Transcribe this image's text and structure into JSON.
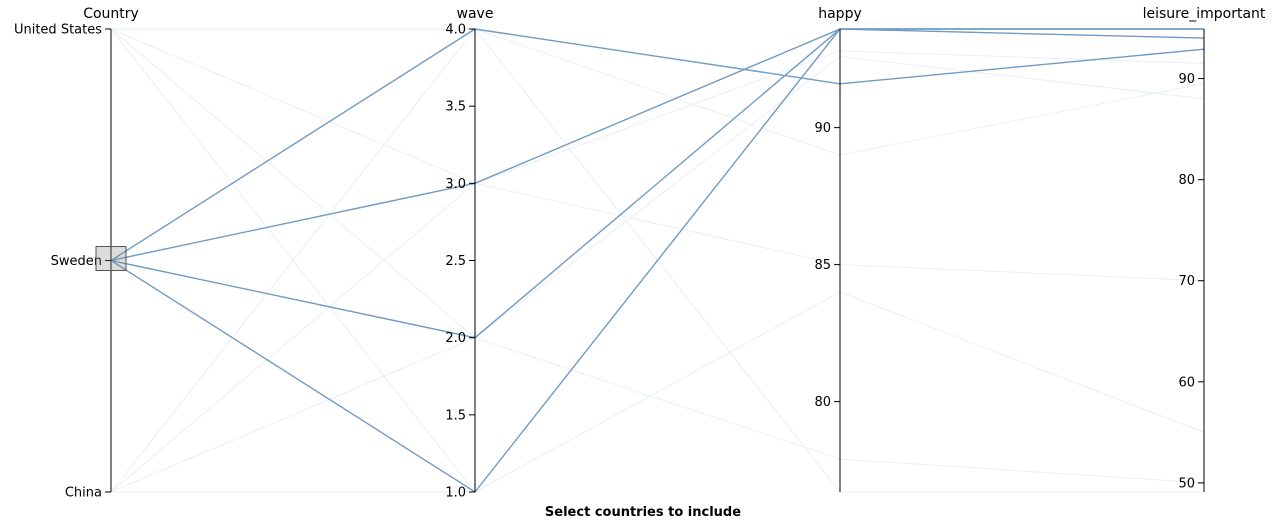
{
  "chart_data": {
    "type": "parallel_coordinates",
    "dimensions": [
      {
        "key": "Country",
        "label": "Country",
        "kind": "categorical",
        "categories": [
          "United States",
          "Sweden",
          "China"
        ]
      },
      {
        "key": "wave",
        "label": "wave",
        "kind": "numeric",
        "range": [
          1.0,
          4.0
        ],
        "ticks": [
          "1.0",
          "1.5",
          "2.0",
          "2.5",
          "3.0",
          "3.5",
          "4.0"
        ]
      },
      {
        "key": "happy",
        "label": "happy",
        "kind": "numeric",
        "range": [
          76.7,
          93.6
        ],
        "ticks": [
          "80",
          "85",
          "90"
        ]
      },
      {
        "key": "leisure_important",
        "label": "leisure_important",
        "kind": "numeric",
        "range": [
          49.1,
          94.9
        ],
        "ticks": [
          "50",
          "60",
          "70",
          "80",
          "90"
        ]
      }
    ],
    "brush": {
      "dimension": "Country",
      "selected": "Sweden"
    },
    "selected_color": "#6f9bc4",
    "faded_color": "#e9eff6",
    "records": [
      {
        "Country": "Sweden",
        "wave": 1.0,
        "happy": 93.6,
        "leisure_important": 94.9
      },
      {
        "Country": "Sweden",
        "wave": 2.0,
        "happy": 93.6,
        "leisure_important": 94.9
      },
      {
        "Country": "Sweden",
        "wave": 3.0,
        "happy": 93.6,
        "leisure_important": 94.0
      },
      {
        "Country": "Sweden",
        "wave": 4.0,
        "happy": 91.6,
        "leisure_important": 92.9
      },
      {
        "Country": "United States",
        "wave": 1.0,
        "happy": 93.6,
        "leisure_important": 94.9
      },
      {
        "Country": "United States",
        "wave": 2.0,
        "happy": 92.6,
        "leisure_important": 88.0
      },
      {
        "Country": "United States",
        "wave": 3.0,
        "happy": 85.0,
        "leisure_important": 70.0
      },
      {
        "Country": "United States",
        "wave": 4.0,
        "happy": 89.0,
        "leisure_important": 89.5
      },
      {
        "Country": "China",
        "wave": 1.0,
        "happy": 84.0,
        "leisure_important": 55.0
      },
      {
        "Country": "China",
        "wave": 2.0,
        "happy": 77.9,
        "leisure_important": 50.0
      },
      {
        "Country": "China",
        "wave": 3.0,
        "happy": 92.8,
        "leisure_important": 91.5
      },
      {
        "Country": "China",
        "wave": 4.0,
        "happy": 76.7,
        "leisure_important": 49.1
      }
    ]
  },
  "caption": "Select countries to include"
}
